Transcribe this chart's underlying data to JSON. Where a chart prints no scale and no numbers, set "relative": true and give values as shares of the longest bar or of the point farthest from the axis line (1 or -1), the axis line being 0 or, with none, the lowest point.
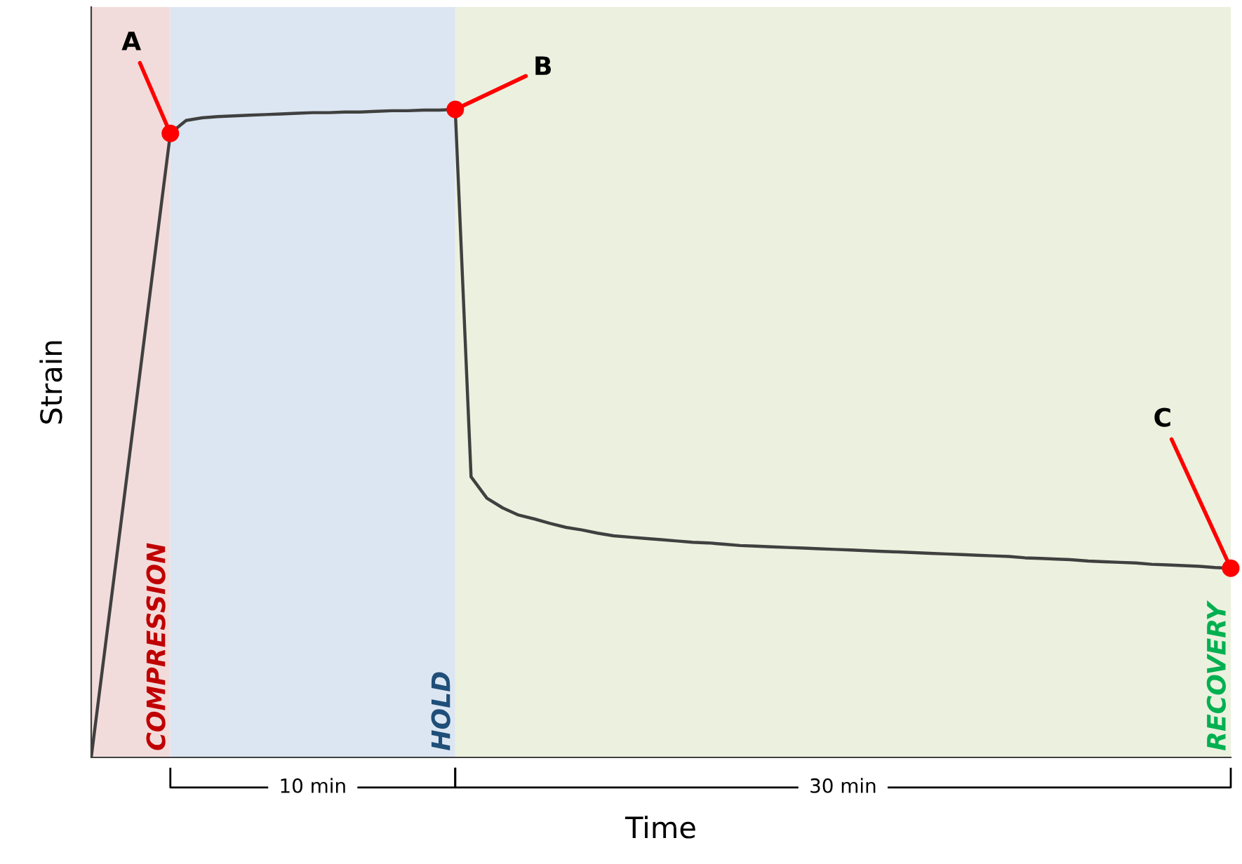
{
  "chart_data": {
    "type": "line",
    "relative": true,
    "xlabel": "Time",
    "ylabel": "Strain",
    "tick_labels": false,
    "categories": [
      null,
      null,
      null,
      null,
      null,
      null,
      null,
      null,
      null,
      null,
      null,
      null,
      null,
      null,
      null,
      null,
      null,
      null,
      null,
      null,
      null,
      null,
      null,
      null,
      null,
      null,
      null,
      null,
      null,
      null,
      null,
      null,
      null,
      null,
      null,
      null,
      null,
      null,
      null,
      null,
      null,
      null,
      null,
      null,
      null,
      null,
      null,
      null,
      null,
      null,
      null,
      null,
      null,
      null,
      null,
      null,
      null,
      null,
      null,
      null,
      null,
      null,
      null,
      null,
      null,
      null,
      null,
      null,
      null,
      null,
      null,
      null,
      null
    ],
    "series": [
      {
        "color": "#404040",
        "values": [
          0,
          0.193,
          0.385,
          0.578,
          0.771,
          0.963,
          0.983,
          0.987,
          0.989,
          0.99,
          0.991,
          0.992,
          0.993,
          0.994,
          0.995,
          0.995,
          0.996,
          0.996,
          0.997,
          0.998,
          0.998,
          0.999,
          0.999,
          1.0,
          0.433,
          0.4,
          0.385,
          0.374,
          0.368,
          0.361,
          0.355,
          0.351,
          0.346,
          0.342,
          0.34,
          0.338,
          0.336,
          0.334,
          0.332,
          0.331,
          0.329,
          0.327,
          0.326,
          0.325,
          0.324,
          0.323,
          0.322,
          0.321,
          0.32,
          0.319,
          0.318,
          0.317,
          0.316,
          0.315,
          0.314,
          0.313,
          0.312,
          0.311,
          0.31,
          0.308,
          0.307,
          0.306,
          0.305,
          0.303,
          0.302,
          0.301,
          0.3,
          0.298,
          0.297,
          0.296,
          0.295,
          0.293,
          0.292
        ]
      }
    ],
    "annotations": [
      "COMPRESSION",
      "HOLD",
      "RECOVERY",
      "A",
      "B",
      "C",
      "10 min",
      "30 min"
    ]
  }
}
